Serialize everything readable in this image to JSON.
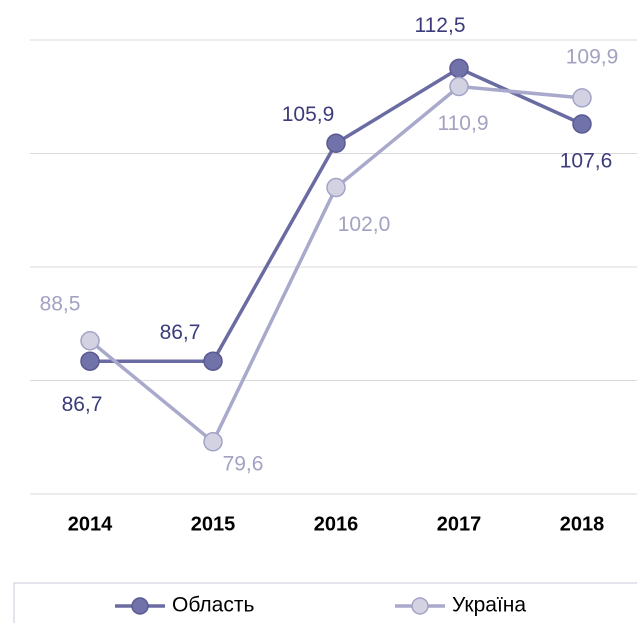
{
  "chart_data": {
    "type": "line",
    "categories": [
      "2014",
      "2015",
      "2016",
      "2017",
      "2018"
    ],
    "series": [
      {
        "name": "Область",
        "color": "#6b6ba3",
        "values": [
          86.7,
          86.7,
          105.9,
          112.5,
          107.6
        ],
        "value_labels": [
          "86,7",
          "86,7",
          "105,9",
          "112,5",
          "107,6"
        ]
      },
      {
        "name": "Україна",
        "color": "#a9a9cc",
        "values": [
          88.5,
          79.6,
          102.0,
          110.9,
          109.9
        ],
        "value_labels": [
          "88,5",
          "79,6",
          "102,0",
          "110,9",
          "109,9"
        ]
      }
    ],
    "ylim": [
      75,
      115
    ],
    "yticks": [
      75,
      85,
      95,
      105,
      115
    ],
    "grid": true,
    "legend": "bottom"
  }
}
